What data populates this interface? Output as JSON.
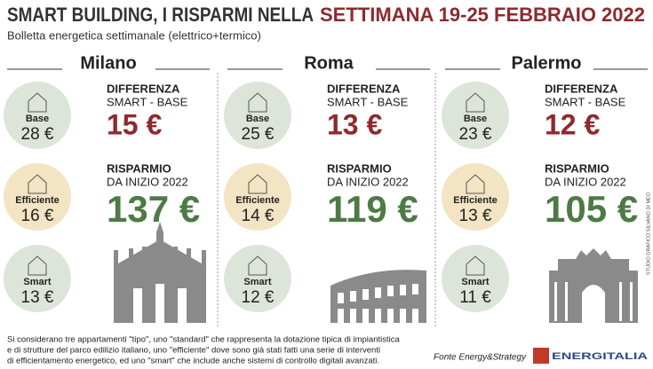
{
  "header": {
    "title_a": "SMART BUILDING, I RISPARMI NELLA",
    "title_b": "SETTIMANA 19-25 FEBBRAIO 2022",
    "subtitle": "Bolletta energetica settimanale (elettrico+termico)"
  },
  "labels": {
    "base": "Base",
    "efficiente": "Efficiente",
    "smart": "Smart",
    "diff_1": "DIFFERENZA",
    "diff_2": "SMART - BASE",
    "risp_1": "RISPARMIO",
    "risp_2": "DA INIZIO 2022"
  },
  "cities": [
    {
      "name": "Milano",
      "base": "28 €",
      "efficiente": "16 €",
      "smart": "13 €",
      "difference": "15 €",
      "savings": "137 €"
    },
    {
      "name": "Roma",
      "base": "25 €",
      "efficiente": "14 €",
      "smart": "12 €",
      "difference": "13 €",
      "savings": "119 €"
    },
    {
      "name": "Palermo",
      "base": "23 €",
      "efficiente": "13 €",
      "smart": "11 €",
      "difference": "12 €",
      "savings": "105 €"
    }
  ],
  "footer": {
    "note": [
      "Si considerano tre appartamenti \"tipo\", uno \"standard\" che rappresenta la dotazione tipica di impiantistica",
      "e di strutture del parco edilizio italiano, uno \"efficiente\" dove sono già stati fatti una serie di interventi",
      "di efficientamento energetico, ed uno \"smart\" che include anche sistemi di controllo digitali avanzati."
    ],
    "source": "Fonte Energy&Strategy",
    "credit": "STUDIO GRAFICO SILVANO DI MEO",
    "logo": "ENERGITALIA"
  }
}
